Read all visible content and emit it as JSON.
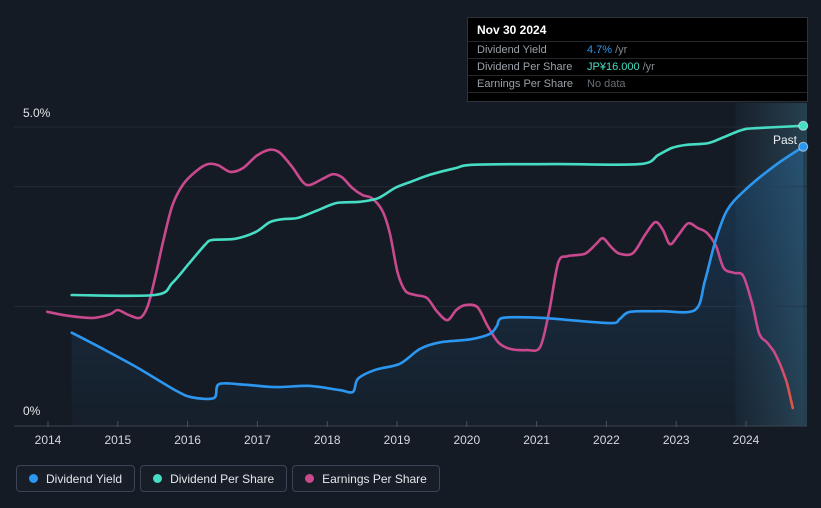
{
  "axes": {
    "y_top_label": "5.0%",
    "y_bottom_label": "0%"
  },
  "past_label": "Past",
  "tooltip": {
    "date": "Nov 30 2024",
    "rows": [
      {
        "label": "Dividend Yield",
        "value": "4.7%",
        "suffix": "/yr",
        "color": "#2b97f1"
      },
      {
        "label": "Dividend Per Share",
        "value": "JP¥16.000",
        "suffix": "/yr",
        "color": "#47dcc4"
      },
      {
        "label": "Earnings Per Share",
        "value": "No data",
        "suffix": "",
        "color": "#676e75"
      }
    ]
  },
  "legend": {
    "items": [
      {
        "label": "Dividend Yield",
        "color": "#2b97f1"
      },
      {
        "label": "Dividend Per Share",
        "color": "#47dcc4"
      },
      {
        "label": "Earnings Per Share",
        "color": "#c9498e"
      }
    ]
  },
  "chart_data": {
    "type": "line",
    "title": "Dividend history",
    "x_axis": {
      "ticks": [
        2014,
        2015,
        2016,
        2017,
        2018,
        2019,
        2020,
        2021,
        2022,
        2023,
        2024
      ],
      "range": [
        2013.9,
        2024.9
      ]
    },
    "y_axis": {
      "labels": [
        "5.0%",
        "0%"
      ],
      "min": 0,
      "max": 5.3,
      "unit": "%",
      "gridlines_pct": [
        5.0,
        4.0,
        2.0
      ],
      "baseline_pct": 0
    },
    "past_band": {
      "from_year": 2023.85,
      "to_year": 2024.9,
      "label": "Past"
    },
    "series": [
      {
        "name": "Dividend Yield",
        "color": "#2b97f1",
        "unit": "%",
        "area_fill": true,
        "marker_end": true,
        "end_value": "4.7% /yr",
        "points": [
          [
            2014.34,
            1.56
          ],
          [
            2014.82,
            1.27
          ],
          [
            2015.32,
            0.95
          ],
          [
            2015.82,
            0.6
          ],
          [
            2016.06,
            0.48
          ],
          [
            2016.38,
            0.47
          ],
          [
            2016.45,
            0.7
          ],
          [
            2016.82,
            0.69
          ],
          [
            2017.25,
            0.65
          ],
          [
            2017.75,
            0.67
          ],
          [
            2018.18,
            0.6
          ],
          [
            2018.37,
            0.57
          ],
          [
            2018.44,
            0.79
          ],
          [
            2018.69,
            0.94
          ],
          [
            2019.04,
            1.04
          ],
          [
            2019.33,
            1.29
          ],
          [
            2019.62,
            1.4
          ],
          [
            2020.05,
            1.45
          ],
          [
            2020.33,
            1.54
          ],
          [
            2020.43,
            1.67
          ],
          [
            2020.52,
            1.81
          ],
          [
            2021.05,
            1.81
          ],
          [
            2021.48,
            1.77
          ],
          [
            2022.08,
            1.72
          ],
          [
            2022.19,
            1.79
          ],
          [
            2022.34,
            1.91
          ],
          [
            2022.77,
            1.92
          ],
          [
            2023.27,
            1.94
          ],
          [
            2023.41,
            2.42
          ],
          [
            2023.56,
            3.09
          ],
          [
            2023.73,
            3.61
          ],
          [
            2023.99,
            3.95
          ],
          [
            2024.42,
            4.36
          ],
          [
            2024.82,
            4.67
          ]
        ]
      },
      {
        "name": "Dividend Per Share",
        "color": "#47dcc4",
        "unit": "JP¥ (axis-equivalent %)",
        "marker_end": true,
        "end_value": "JP¥16.000 /yr",
        "points": [
          [
            2014.34,
            2.19
          ],
          [
            2015.53,
            2.19
          ],
          [
            2015.78,
            2.39
          ],
          [
            2016.03,
            2.73
          ],
          [
            2016.25,
            3.03
          ],
          [
            2016.35,
            3.11
          ],
          [
            2016.68,
            3.13
          ],
          [
            2016.97,
            3.24
          ],
          [
            2017.18,
            3.41
          ],
          [
            2017.37,
            3.46
          ],
          [
            2017.58,
            3.48
          ],
          [
            2017.87,
            3.61
          ],
          [
            2018.14,
            3.73
          ],
          [
            2018.47,
            3.75
          ],
          [
            2018.73,
            3.81
          ],
          [
            2018.97,
            3.98
          ],
          [
            2019.19,
            4.08
          ],
          [
            2019.47,
            4.2
          ],
          [
            2019.83,
            4.31
          ],
          [
            2020.12,
            4.37
          ],
          [
            2021.3,
            4.38
          ],
          [
            2022.48,
            4.38
          ],
          [
            2022.74,
            4.53
          ],
          [
            2022.94,
            4.65
          ],
          [
            2023.14,
            4.7
          ],
          [
            2023.46,
            4.73
          ],
          [
            2023.68,
            4.83
          ],
          [
            2023.94,
            4.95
          ],
          [
            2024.13,
            4.98
          ],
          [
            2024.82,
            5.02
          ]
        ]
      },
      {
        "name": "Earnings Per Share",
        "color": "#c9498e",
        "unit": "axis-equivalent %",
        "marker_end": false,
        "end_value": "No data",
        "tail_color": "#e0543f",
        "points": [
          [
            2013.99,
            1.91
          ],
          [
            2014.2,
            1.86
          ],
          [
            2014.46,
            1.82
          ],
          [
            2014.67,
            1.81
          ],
          [
            2014.89,
            1.87
          ],
          [
            2015.0,
            1.94
          ],
          [
            2015.15,
            1.86
          ],
          [
            2015.32,
            1.81
          ],
          [
            2015.43,
            2.01
          ],
          [
            2015.53,
            2.46
          ],
          [
            2015.65,
            3.09
          ],
          [
            2015.78,
            3.68
          ],
          [
            2015.93,
            4.03
          ],
          [
            2016.12,
            4.26
          ],
          [
            2016.29,
            4.38
          ],
          [
            2016.44,
            4.36
          ],
          [
            2016.61,
            4.25
          ],
          [
            2016.79,
            4.31
          ],
          [
            2016.99,
            4.52
          ],
          [
            2017.18,
            4.62
          ],
          [
            2017.32,
            4.57
          ],
          [
            2017.5,
            4.33
          ],
          [
            2017.65,
            4.08
          ],
          [
            2017.75,
            4.03
          ],
          [
            2017.93,
            4.13
          ],
          [
            2018.08,
            4.21
          ],
          [
            2018.21,
            4.16
          ],
          [
            2018.36,
            3.98
          ],
          [
            2018.51,
            3.86
          ],
          [
            2018.64,
            3.81
          ],
          [
            2018.79,
            3.6
          ],
          [
            2018.9,
            3.21
          ],
          [
            2019.01,
            2.56
          ],
          [
            2019.12,
            2.26
          ],
          [
            2019.26,
            2.19
          ],
          [
            2019.43,
            2.14
          ],
          [
            2019.57,
            1.92
          ],
          [
            2019.72,
            1.77
          ],
          [
            2019.85,
            1.94
          ],
          [
            2019.97,
            2.02
          ],
          [
            2020.15,
            1.99
          ],
          [
            2020.3,
            1.67
          ],
          [
            2020.45,
            1.4
          ],
          [
            2020.62,
            1.29
          ],
          [
            2020.86,
            1.27
          ],
          [
            2021.05,
            1.32
          ],
          [
            2021.18,
            1.92
          ],
          [
            2021.31,
            2.73
          ],
          [
            2021.44,
            2.84
          ],
          [
            2021.69,
            2.88
          ],
          [
            2021.85,
            3.04
          ],
          [
            2021.95,
            3.14
          ],
          [
            2022.07,
            2.99
          ],
          [
            2022.19,
            2.88
          ],
          [
            2022.38,
            2.89
          ],
          [
            2022.55,
            3.19
          ],
          [
            2022.7,
            3.41
          ],
          [
            2022.81,
            3.28
          ],
          [
            2022.91,
            3.04
          ],
          [
            2023.03,
            3.19
          ],
          [
            2023.17,
            3.39
          ],
          [
            2023.31,
            3.31
          ],
          [
            2023.44,
            3.23
          ],
          [
            2023.57,
            3.01
          ],
          [
            2023.68,
            2.64
          ],
          [
            2023.83,
            2.56
          ],
          [
            2023.96,
            2.51
          ],
          [
            2024.09,
            2.04
          ],
          [
            2024.19,
            1.54
          ],
          [
            2024.3,
            1.4
          ],
          [
            2024.4,
            1.25
          ]
        ],
        "tail_points": [
          [
            2024.4,
            1.25
          ],
          [
            2024.5,
            1.0
          ],
          [
            2024.59,
            0.7
          ],
          [
            2024.67,
            0.3
          ]
        ]
      }
    ]
  }
}
